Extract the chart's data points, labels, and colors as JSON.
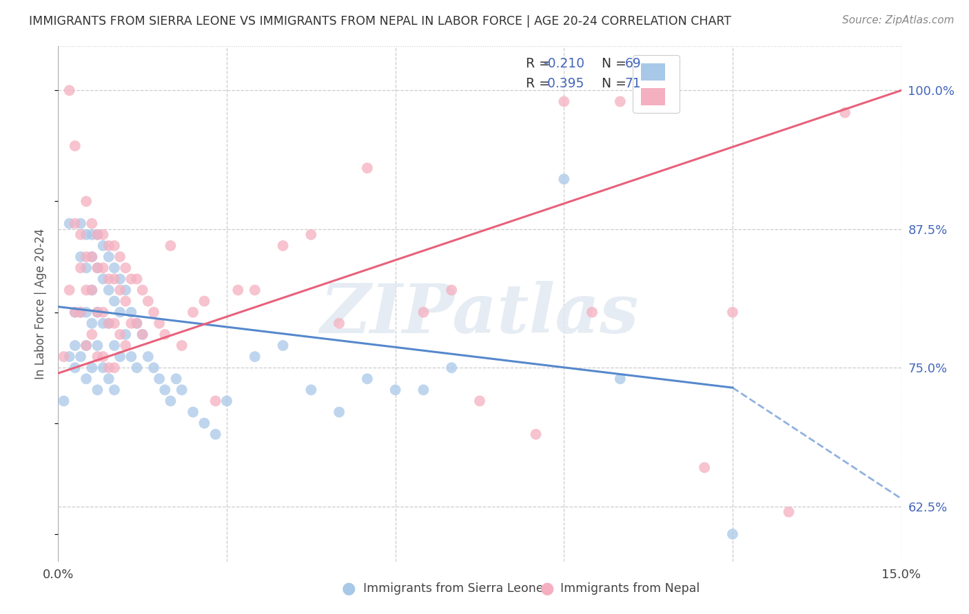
{
  "title": "IMMIGRANTS FROM SIERRA LEONE VS IMMIGRANTS FROM NEPAL IN LABOR FORCE | AGE 20-24 CORRELATION CHART",
  "source": "Source: ZipAtlas.com",
  "ylabel": "In Labor Force | Age 20-24",
  "x_min": 0.0,
  "x_max": 0.15,
  "y_min": 0.575,
  "y_max": 1.04,
  "x_ticks": [
    0.0,
    0.03,
    0.06,
    0.09,
    0.12,
    0.15
  ],
  "x_tick_labels": [
    "0.0%",
    "",
    "",
    "",
    "",
    "15.0%"
  ],
  "y_tick_labels_right": [
    "62.5%",
    "75.0%",
    "87.5%",
    "100.0%"
  ],
  "y_tick_vals_right": [
    0.625,
    0.75,
    0.875,
    1.0
  ],
  "color_sierra": "#a8c8e8",
  "color_nepal": "#f4afc0",
  "color_sierra_line": "#5588cc",
  "color_nepal_line": "#e8607a",
  "color_blue_text": "#4466bb",
  "watermark_text": "ZIPatlas",
  "legend_sierra_r": "-0.210",
  "legend_sierra_n": "69",
  "legend_nepal_r": "0.395",
  "legend_nepal_n": "71",
  "sierra_x": [
    0.001,
    0.002,
    0.002,
    0.003,
    0.003,
    0.003,
    0.004,
    0.004,
    0.004,
    0.004,
    0.005,
    0.005,
    0.005,
    0.005,
    0.005,
    0.006,
    0.006,
    0.006,
    0.006,
    0.006,
    0.007,
    0.007,
    0.007,
    0.007,
    0.007,
    0.008,
    0.008,
    0.008,
    0.008,
    0.009,
    0.009,
    0.009,
    0.009,
    0.01,
    0.01,
    0.01,
    0.01,
    0.011,
    0.011,
    0.011,
    0.012,
    0.012,
    0.013,
    0.013,
    0.014,
    0.014,
    0.015,
    0.016,
    0.017,
    0.018,
    0.019,
    0.02,
    0.021,
    0.022,
    0.024,
    0.026,
    0.028,
    0.03,
    0.035,
    0.04,
    0.045,
    0.05,
    0.055,
    0.06,
    0.065,
    0.07,
    0.09,
    0.1,
    0.12
  ],
  "sierra_y": [
    0.72,
    0.88,
    0.76,
    0.8,
    0.77,
    0.75,
    0.88,
    0.85,
    0.8,
    0.76,
    0.87,
    0.84,
    0.8,
    0.77,
    0.74,
    0.87,
    0.85,
    0.82,
    0.79,
    0.75,
    0.87,
    0.84,
    0.8,
    0.77,
    0.73,
    0.86,
    0.83,
    0.79,
    0.75,
    0.85,
    0.82,
    0.79,
    0.74,
    0.84,
    0.81,
    0.77,
    0.73,
    0.83,
    0.8,
    0.76,
    0.82,
    0.78,
    0.8,
    0.76,
    0.79,
    0.75,
    0.78,
    0.76,
    0.75,
    0.74,
    0.73,
    0.72,
    0.74,
    0.73,
    0.71,
    0.7,
    0.69,
    0.72,
    0.76,
    0.77,
    0.73,
    0.71,
    0.74,
    0.73,
    0.73,
    0.75,
    0.92,
    0.74,
    0.6
  ],
  "nepal_x": [
    0.001,
    0.002,
    0.002,
    0.003,
    0.003,
    0.003,
    0.004,
    0.004,
    0.004,
    0.005,
    0.005,
    0.005,
    0.005,
    0.006,
    0.006,
    0.006,
    0.006,
    0.007,
    0.007,
    0.007,
    0.007,
    0.008,
    0.008,
    0.008,
    0.008,
    0.009,
    0.009,
    0.009,
    0.009,
    0.01,
    0.01,
    0.01,
    0.01,
    0.011,
    0.011,
    0.011,
    0.012,
    0.012,
    0.012,
    0.013,
    0.013,
    0.014,
    0.014,
    0.015,
    0.015,
    0.016,
    0.017,
    0.018,
    0.019,
    0.02,
    0.022,
    0.024,
    0.026,
    0.028,
    0.032,
    0.035,
    0.04,
    0.045,
    0.05,
    0.055,
    0.065,
    0.07,
    0.075,
    0.085,
    0.09,
    0.095,
    0.1,
    0.115,
    0.13,
    0.14,
    0.12
  ],
  "nepal_y": [
    0.76,
    1.0,
    0.82,
    0.95,
    0.88,
    0.8,
    0.87,
    0.84,
    0.8,
    0.9,
    0.85,
    0.82,
    0.77,
    0.88,
    0.85,
    0.82,
    0.78,
    0.87,
    0.84,
    0.8,
    0.76,
    0.87,
    0.84,
    0.8,
    0.76,
    0.86,
    0.83,
    0.79,
    0.75,
    0.86,
    0.83,
    0.79,
    0.75,
    0.85,
    0.82,
    0.78,
    0.84,
    0.81,
    0.77,
    0.83,
    0.79,
    0.83,
    0.79,
    0.82,
    0.78,
    0.81,
    0.8,
    0.79,
    0.78,
    0.86,
    0.77,
    0.8,
    0.81,
    0.72,
    0.82,
    0.82,
    0.86,
    0.87,
    0.79,
    0.93,
    0.8,
    0.82,
    0.72,
    0.69,
    0.99,
    0.8,
    0.99,
    0.66,
    0.62,
    0.98,
    0.8
  ],
  "sierra_line_x0": 0.0,
  "sierra_line_x1": 0.12,
  "sierra_line_xdash1": 0.12,
  "sierra_line_xdash2": 0.15,
  "sierra_line_y0": 0.805,
  "sierra_line_y1": 0.732,
  "sierra_line_ydash1": 0.732,
  "sierra_line_ydash2": 0.632,
  "nepal_line_x0": 0.0,
  "nepal_line_x1": 0.15,
  "nepal_line_y0": 0.745,
  "nepal_line_y1": 1.0
}
